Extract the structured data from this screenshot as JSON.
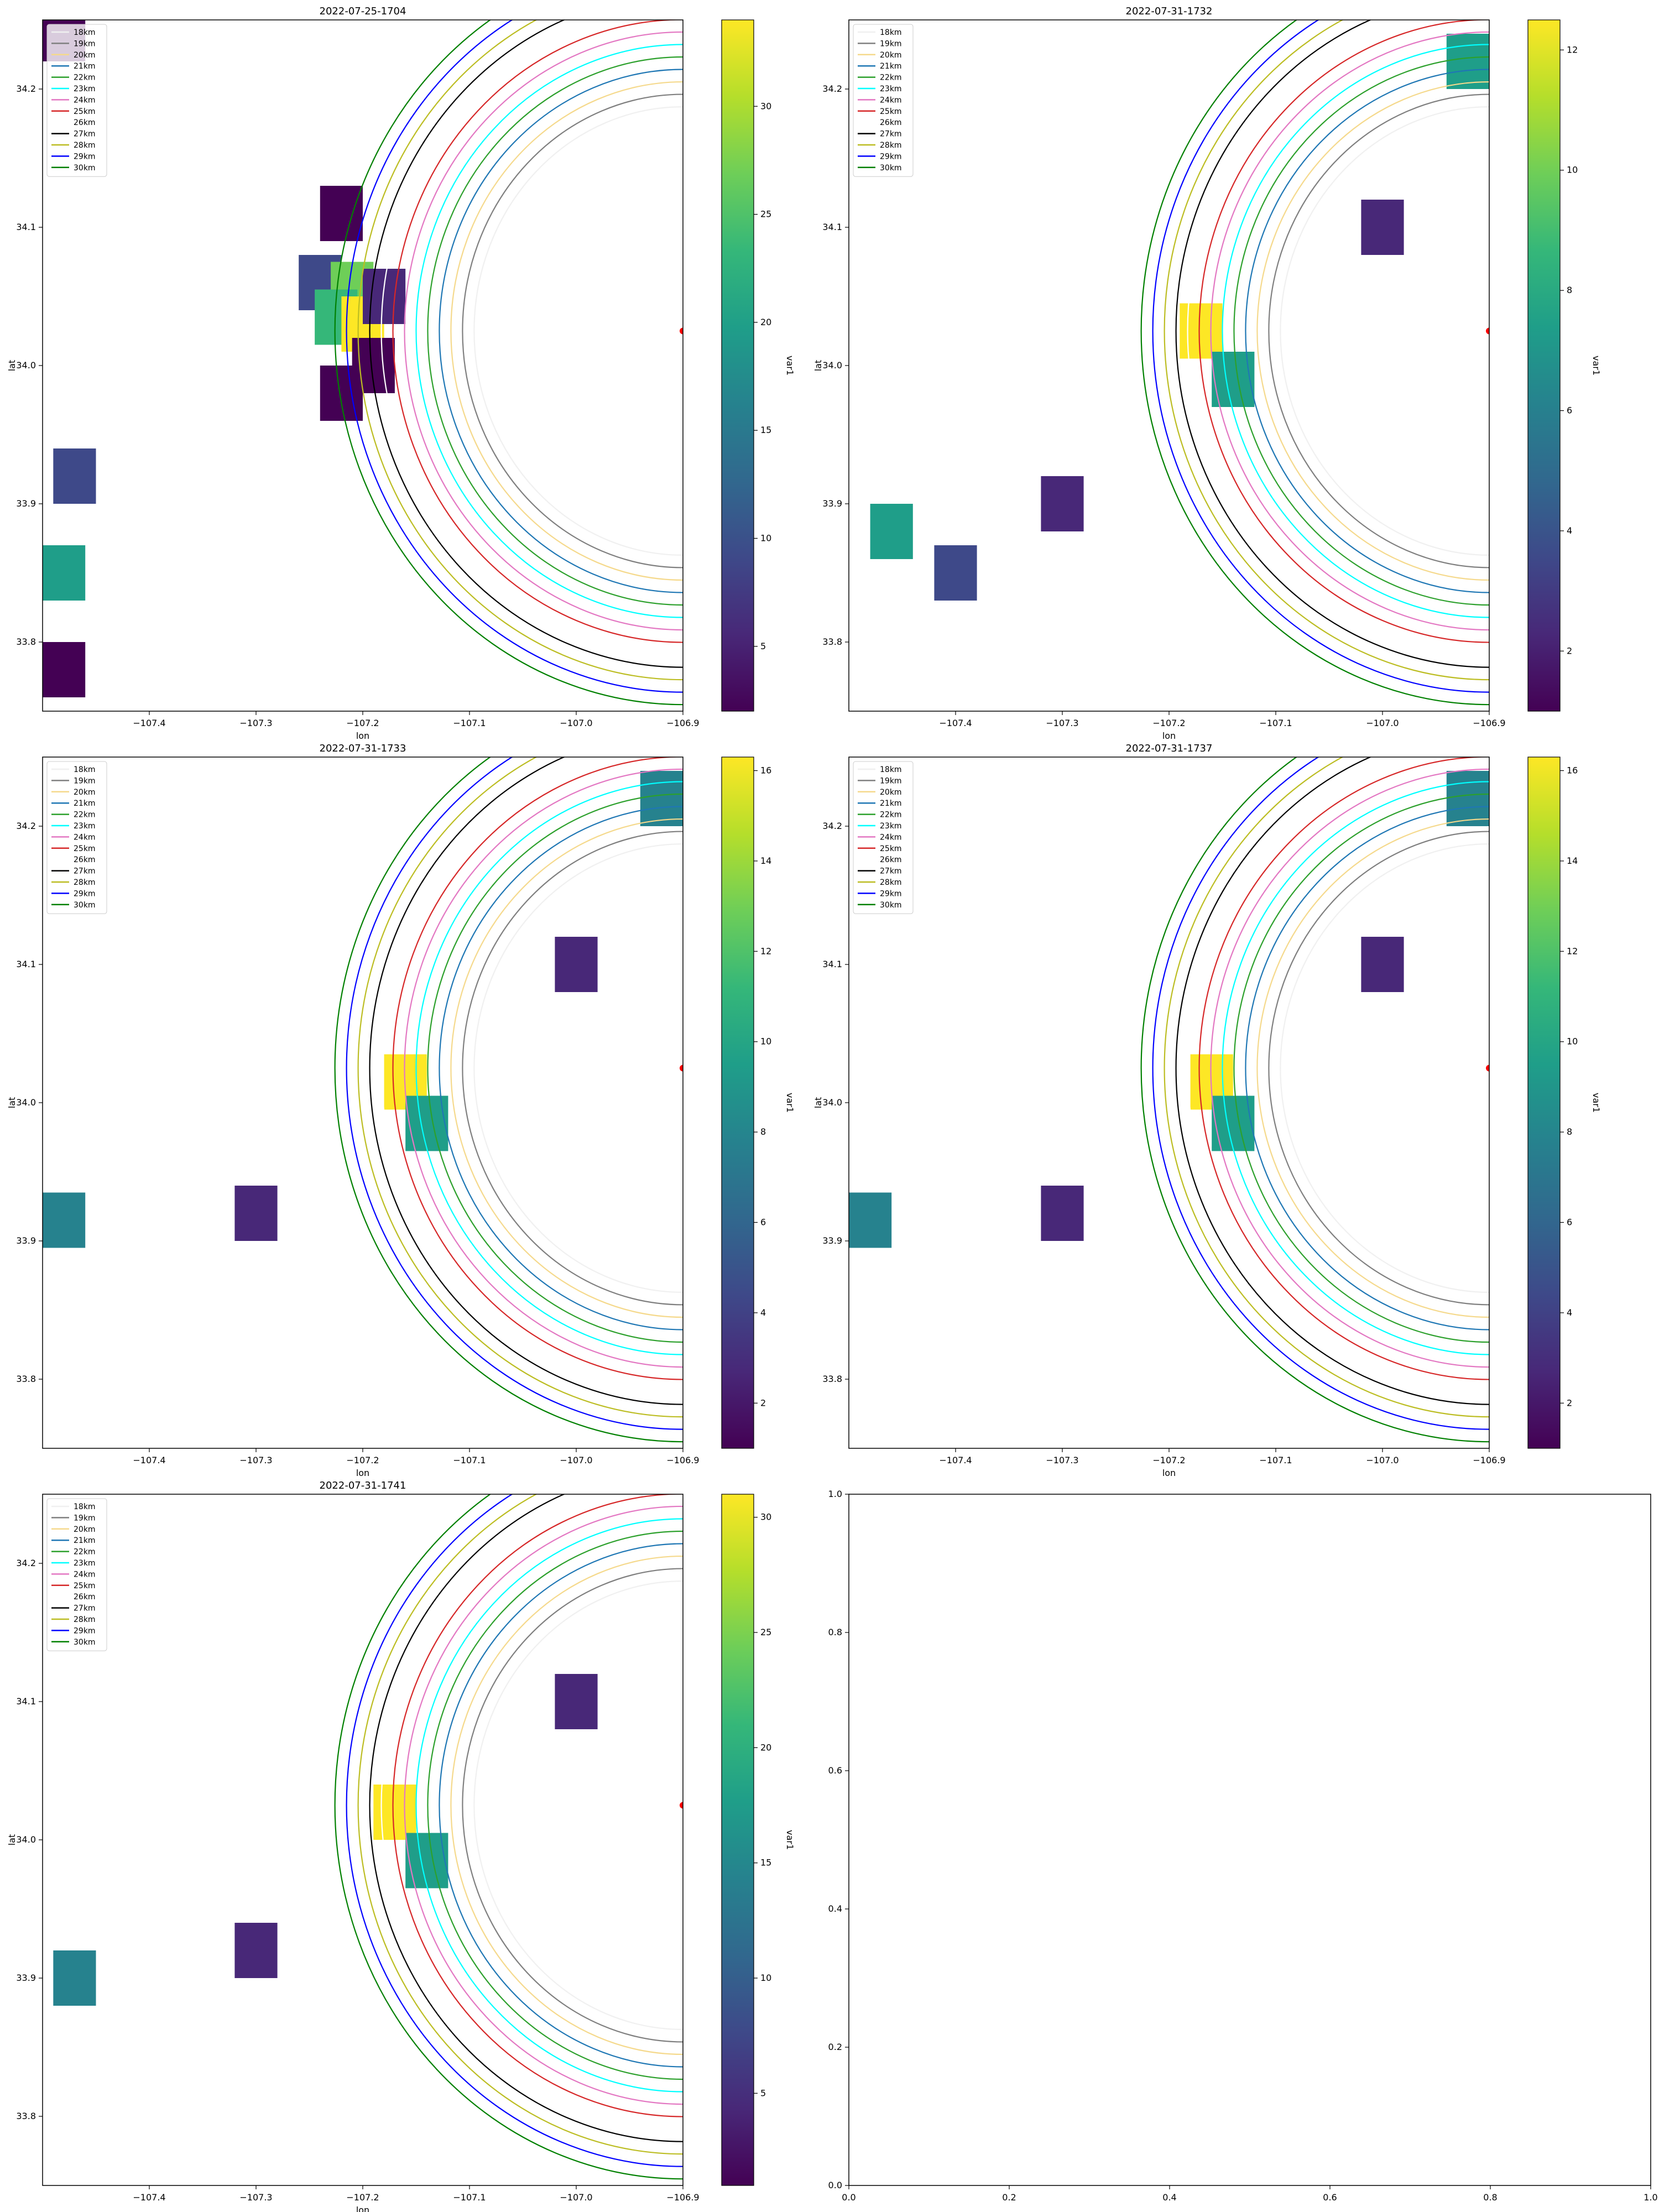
{
  "chart_data": [
    {
      "type": "heatmap",
      "title": "2022-07-25-1704",
      "xlabel": "lon",
      "ylabel": "lat",
      "xlim": [
        -107.5,
        -106.9
      ],
      "ylim": [
        33.75,
        34.25
      ],
      "xticks": [
        "−107.4",
        "−107.3",
        "−107.2",
        "−107.1",
        "−107.0",
        "−106.9"
      ],
      "yticks": [
        "33.8",
        "33.9",
        "34.0",
        "34.1",
        "34.2"
      ],
      "colorbar_label": "var1",
      "colorbar_range": [
        2,
        34
      ],
      "colorbar_ticks": [
        "5",
        "10",
        "15",
        "20",
        "25",
        "30"
      ],
      "legend_position": "upper left",
      "legend": [
        "18km",
        "19km",
        "20km",
        "21km",
        "22km",
        "23km",
        "24km",
        "25km",
        "26km",
        "27km",
        "28km",
        "29km",
        "30km"
      ],
      "center_point": {
        "lon": -106.9,
        "lat": 34.025
      },
      "rings_km": [
        18,
        19,
        20,
        21,
        22,
        23,
        24,
        25,
        26,
        27,
        28,
        29,
        30
      ],
      "cells": [
        {
          "lon": -107.48,
          "lat": 34.24,
          "value": 3
        },
        {
          "lon": -107.22,
          "lat": 34.11,
          "value": 3
        },
        {
          "lon": -107.24,
          "lat": 34.06,
          "value": 9
        },
        {
          "lon": -107.21,
          "lat": 34.055,
          "value": 27
        },
        {
          "lon": -107.225,
          "lat": 34.035,
          "value": 24
        },
        {
          "lon": -107.2,
          "lat": 34.03,
          "value": 33
        },
        {
          "lon": -107.18,
          "lat": 34.05,
          "value": 7
        },
        {
          "lon": -107.19,
          "lat": 34.0,
          "value": 3
        },
        {
          "lon": -107.22,
          "lat": 33.98,
          "value": 3
        },
        {
          "lon": -107.47,
          "lat": 33.92,
          "value": 8
        },
        {
          "lon": -107.48,
          "lat": 33.85,
          "value": 21
        },
        {
          "lon": -107.48,
          "lat": 33.78,
          "value": 3
        }
      ]
    },
    {
      "type": "heatmap",
      "title": "2022-07-31-1732",
      "xlabel": "lon",
      "ylabel": "lat",
      "xlim": [
        -107.5,
        -106.9
      ],
      "ylim": [
        33.75,
        34.25
      ],
      "xticks": [
        "−107.4",
        "−107.3",
        "−107.2",
        "−107.1",
        "−107.0",
        "−106.9"
      ],
      "yticks": [
        "33.8",
        "33.9",
        "34.0",
        "34.1",
        "34.2"
      ],
      "colorbar_label": "var1",
      "colorbar_range": [
        1,
        12.5
      ],
      "colorbar_ticks": [
        "2",
        "4",
        "6",
        "8",
        "10",
        "12"
      ],
      "legend_position": "upper left",
      "legend": [
        "18km",
        "19km",
        "20km",
        "21km",
        "22km",
        "23km",
        "24km",
        "25km",
        "26km",
        "27km",
        "28km",
        "29km",
        "30km"
      ],
      "center_point": {
        "lon": -106.9,
        "lat": 34.025
      },
      "rings_km": [
        18,
        19,
        20,
        21,
        22,
        23,
        24,
        25,
        26,
        27,
        28,
        29,
        30
      ],
      "cells": [
        {
          "lon": -107.17,
          "lat": 34.025,
          "value": 12
        },
        {
          "lon": -107.14,
          "lat": 33.99,
          "value": 7
        },
        {
          "lon": -106.92,
          "lat": 34.22,
          "value": 8
        },
        {
          "lon": -107.46,
          "lat": 33.88,
          "value": 7
        },
        {
          "lon": -107.4,
          "lat": 33.85,
          "value": 3
        },
        {
          "lon": -107.0,
          "lat": 34.1,
          "value": 2
        },
        {
          "lon": -107.3,
          "lat": 33.9,
          "value": 2
        }
      ]
    },
    {
      "type": "heatmap",
      "title": "2022-07-31-1733",
      "xlabel": "lon",
      "ylabel": "lat",
      "xlim": [
        -107.5,
        -106.9
      ],
      "ylim": [
        33.75,
        34.25
      ],
      "xticks": [
        "−107.4",
        "−107.3",
        "−107.2",
        "−107.1",
        "−107.0",
        "−106.9"
      ],
      "yticks": [
        "33.8",
        "33.9",
        "34.0",
        "34.1",
        "34.2"
      ],
      "colorbar_label": "var1",
      "colorbar_range": [
        1,
        16.3
      ],
      "colorbar_ticks": [
        "2",
        "4",
        "6",
        "8",
        "10",
        "12",
        "14",
        "16"
      ],
      "legend_position": "upper left",
      "legend": [
        "18km",
        "19km",
        "20km",
        "21km",
        "22km",
        "23km",
        "24km",
        "25km",
        "26km",
        "27km",
        "28km",
        "29km",
        "30km"
      ],
      "center_point": {
        "lon": -106.9,
        "lat": 34.025
      },
      "rings_km": [
        18,
        19,
        20,
        21,
        22,
        23,
        24,
        25,
        26,
        27,
        28,
        29,
        30
      ],
      "cells": [
        {
          "lon": -107.16,
          "lat": 34.015,
          "value": 16
        },
        {
          "lon": -107.14,
          "lat": 33.985,
          "value": 9
        },
        {
          "lon": -106.92,
          "lat": 34.22,
          "value": 8
        },
        {
          "lon": -107.48,
          "lat": 33.915,
          "value": 7
        },
        {
          "lon": -107.3,
          "lat": 33.92,
          "value": 2
        },
        {
          "lon": -107.0,
          "lat": 34.1,
          "value": 2
        }
      ]
    },
    {
      "type": "heatmap",
      "title": "2022-07-31-1737",
      "xlabel": "lon",
      "ylabel": "lat",
      "xlim": [
        -107.5,
        -106.9
      ],
      "ylim": [
        33.75,
        34.25
      ],
      "xticks": [
        "−107.4",
        "−107.3",
        "−107.2",
        "−107.1",
        "−107.0",
        "−106.9"
      ],
      "yticks": [
        "33.8",
        "33.9",
        "34.0",
        "34.1",
        "34.2"
      ],
      "colorbar_label": "var1",
      "colorbar_range": [
        1,
        16.3
      ],
      "colorbar_ticks": [
        "2",
        "4",
        "6",
        "8",
        "10",
        "12",
        "14",
        "16"
      ],
      "legend_position": "upper left",
      "legend": [
        "18km",
        "19km",
        "20km",
        "21km",
        "22km",
        "23km",
        "24km",
        "25km",
        "26km",
        "27km",
        "28km",
        "29km",
        "30km"
      ],
      "center_point": {
        "lon": -106.9,
        "lat": 34.025
      },
      "rings_km": [
        18,
        19,
        20,
        21,
        22,
        23,
        24,
        25,
        26,
        27,
        28,
        29,
        30
      ],
      "cells": [
        {
          "lon": -107.16,
          "lat": 34.015,
          "value": 16
        },
        {
          "lon": -107.14,
          "lat": 33.985,
          "value": 9
        },
        {
          "lon": -106.92,
          "lat": 34.22,
          "value": 8
        },
        {
          "lon": -107.48,
          "lat": 33.915,
          "value": 7
        },
        {
          "lon": -107.3,
          "lat": 33.92,
          "value": 2
        },
        {
          "lon": -107.0,
          "lat": 34.1,
          "value": 2
        }
      ]
    },
    {
      "type": "heatmap",
      "title": "2022-07-31-1741",
      "xlabel": "lon",
      "ylabel": "lat",
      "xlim": [
        -107.5,
        -106.9
      ],
      "ylim": [
        33.75,
        34.25
      ],
      "xticks": [
        "−107.4",
        "−107.3",
        "−107.2",
        "−107.1",
        "−107.0",
        "−106.9"
      ],
      "yticks": [
        "33.8",
        "33.9",
        "34.0",
        "34.1",
        "34.2"
      ],
      "colorbar_label": "var1",
      "colorbar_range": [
        1,
        31
      ],
      "colorbar_ticks": [
        "5",
        "10",
        "15",
        "20",
        "25",
        "30"
      ],
      "legend_position": "upper left",
      "legend": [
        "18km",
        "19km",
        "20km",
        "21km",
        "22km",
        "23km",
        "24km",
        "25km",
        "26km",
        "27km",
        "28km",
        "29km",
        "30km"
      ],
      "center_point": {
        "lon": -106.9,
        "lat": 34.025
      },
      "rings_km": [
        18,
        19,
        20,
        21,
        22,
        23,
        24,
        25,
        26,
        27,
        28,
        29,
        30
      ],
      "cells": [
        {
          "lon": -107.17,
          "lat": 34.02,
          "value": 31
        },
        {
          "lon": -107.14,
          "lat": 33.985,
          "value": 17
        },
        {
          "lon": -107.47,
          "lat": 33.9,
          "value": 13
        },
        {
          "lon": -107.3,
          "lat": 33.92,
          "value": 3
        },
        {
          "lon": -107.0,
          "lat": 34.1,
          "value": 3
        }
      ]
    },
    {
      "type": "line",
      "title": "",
      "xlim": [
        0,
        1
      ],
      "ylim": [
        0,
        1
      ],
      "xticks": [
        "0.0",
        "0.2",
        "0.4",
        "0.6",
        "0.8",
        "1.0"
      ],
      "yticks": [
        "0.0",
        "0.2",
        "0.4",
        "0.6",
        "0.8",
        "1.0"
      ],
      "series": []
    }
  ],
  "ring_colors": [
    "#f0f0f0",
    "#7f7f7f",
    "#f5d98c",
    "#1f77b4",
    "#2ca02c",
    "#00ffff",
    "#e377c2",
    "#d62728",
    "#ffffff",
    "#000000",
    "#bcbd22",
    "#0000ff",
    "#008000"
  ],
  "viridis": [
    "#440154",
    "#482878",
    "#3e4989",
    "#31688e",
    "#26828e",
    "#1f9e89",
    "#35b779",
    "#6ece58",
    "#b5de2b",
    "#fde725"
  ]
}
